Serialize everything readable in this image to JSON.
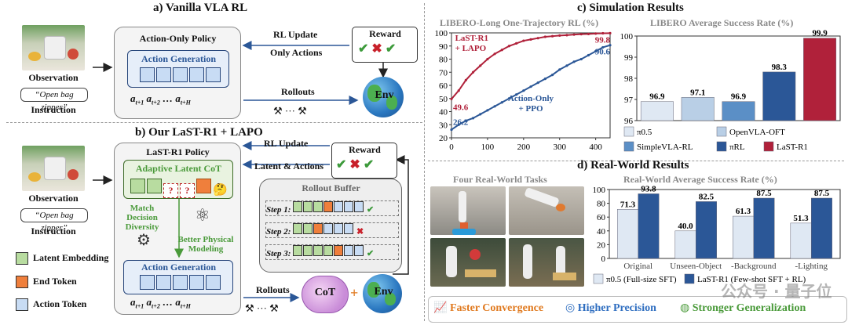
{
  "sections": {
    "a": "a) Vanilla VLA RL",
    "b": "b) Our LaST-R1 + LAPO",
    "c": "c) Simulation Results",
    "d": "d) Real-World Results"
  },
  "common": {
    "observation": "Observation",
    "instruction_text": "“Open bag zipper”",
    "instruction": "Instruction",
    "reward": "Reward",
    "env": "Env",
    "rollouts": "Rollouts",
    "dots": "···",
    "action_tokens_label": "a_{t+1} a_{t+2} … a_{t+H}",
    "a_t1": "a",
    "sub_t1": "t+1",
    "sub_t2": "t+2",
    "sub_tH": "t+H",
    "ellipsis": "…"
  },
  "vanilla": {
    "policy_title": "Action-Only Policy",
    "action_generation": "Action Generation",
    "rl_update": "RL Update",
    "only_actions": "Only Actions"
  },
  "ours": {
    "policy_title": "LaST-R1 Policy",
    "adaptive_cot": "Adaptive Latent CoT",
    "action_generation": "Action Generation",
    "match_decision": "Match Decision",
    "diversity": "Diversity",
    "better_physical": "Better Physical",
    "modeling": "Modeling",
    "rl_update": "RL Update",
    "latent_actions": "Latent & Actions",
    "rollout_buffer": "Rollout Buffer",
    "steps": [
      "Step 1:",
      "Step 2:",
      "Step 3:"
    ],
    "cot": "CoT",
    "plus": "+",
    "legend": [
      "Latent Embedding",
      "End Token",
      "Action Token"
    ]
  },
  "chart_data": [
    {
      "type": "line",
      "title": "LIBERO-Long One-Trajectory RL (%)",
      "xlim": [
        0,
        440
      ],
      "ylim": [
        20,
        100
      ],
      "xticks": [
        0,
        100,
        200,
        300,
        400
      ],
      "yticks": [
        20,
        30,
        40,
        50,
        60,
        70,
        80,
        90,
        100
      ],
      "series": [
        {
          "name": "LaST-R1 + LAPO",
          "color": "#b0213a",
          "x": [
            0,
            20,
            40,
            60,
            80,
            100,
            120,
            140,
            160,
            180,
            200,
            220,
            240,
            260,
            280,
            300,
            320,
            340,
            360,
            380,
            400,
            420,
            440
          ],
          "y": [
            49.6,
            56,
            64,
            70,
            75,
            80,
            84,
            87,
            90,
            92,
            94,
            95,
            96,
            97,
            97.5,
            98,
            98.3,
            98.7,
            99,
            99.2,
            99.5,
            99.7,
            99.8
          ],
          "labels": [
            "LaST-R1",
            "+ LAPO"
          ],
          "start_label": "49.6",
          "end_label": "99.8"
        },
        {
          "name": "Action-Only + PPO",
          "color": "#2b5797",
          "x": [
            0,
            20,
            40,
            60,
            80,
            100,
            120,
            140,
            160,
            180,
            200,
            220,
            240,
            260,
            280,
            300,
            320,
            340,
            360,
            380,
            400,
            420,
            440
          ],
          "y": [
            26.2,
            30,
            33,
            35,
            38,
            41,
            44,
            47,
            50,
            53,
            56,
            59,
            62,
            65,
            68,
            72,
            75,
            78,
            80,
            83,
            86,
            89,
            90.6
          ],
          "labels": [
            "Action-Only",
            "+ PPO"
          ],
          "start_label": "26.2",
          "end_label": "90.6"
        }
      ]
    },
    {
      "type": "bar",
      "title": "LIBERO Average Success Rate (%)",
      "ylim": [
        96,
        100
      ],
      "yticks": [
        96,
        97,
        98,
        99,
        100
      ],
      "categories": [
        "π0.5",
        "OpenVLA-OFT",
        "SimpleVLA-RL",
        "πRL",
        "LaST-R1"
      ],
      "values": [
        96.9,
        97.1,
        96.9,
        98.3,
        99.9
      ],
      "colors": [
        "#dfe8f3",
        "#b9cfe6",
        "#5b8fc6",
        "#2b5797",
        "#b0213a"
      ],
      "legend": [
        "π0.5",
        "OpenVLA-OFT",
        "SimpleVLA-RL",
        "πRL",
        "LaST-R1"
      ]
    },
    {
      "type": "bar",
      "title": "Real-World Average Success Rate (%)",
      "ylim": [
        0,
        100
      ],
      "yticks": [
        0,
        20,
        40,
        60,
        80,
        100
      ],
      "categories": [
        "Original",
        "Unseen-Object",
        "-Background",
        "-Lighting"
      ],
      "series": [
        {
          "name": "π0.5 (Full-size SFT)",
          "values": [
            71.3,
            40.0,
            61.3,
            51.3
          ],
          "color": "#dfe8f3"
        },
        {
          "name": "LaST-R1 (Few-shot SFT + RL)",
          "values": [
            93.8,
            82.5,
            87.5,
            87.5
          ],
          "color": "#2b5797"
        }
      ]
    }
  ],
  "realworld": {
    "tasks_title": "Four Real-World Tasks"
  },
  "benefits": [
    "Faster Convergence",
    "Higher Precision",
    "Stronger Generalization"
  ],
  "watermark": "公众号 · 量子位",
  "colors": {
    "red": "#b0213a",
    "blue": "#2b5797",
    "green_text": "#4a9a3a",
    "orange_text": "#e07a20",
    "light_blue_text": "#2f6ec0"
  }
}
